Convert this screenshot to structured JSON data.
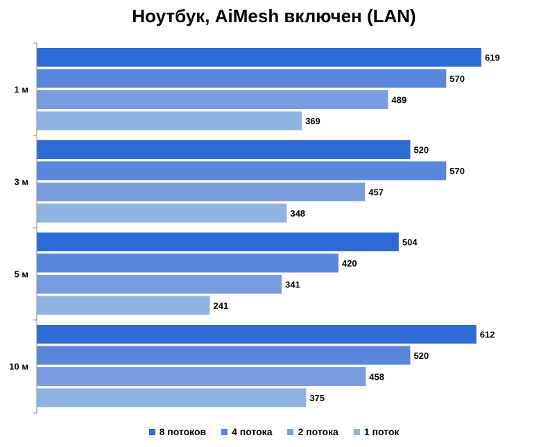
{
  "chart_data": {
    "type": "bar",
    "orientation": "horizontal",
    "title": "Ноутбук, AiMesh включен (LAN)",
    "categories": [
      "1 м",
      "3 м",
      "5 м",
      "10 м"
    ],
    "series": [
      {
        "name": "8 потоков",
        "color": "#2f6bd4",
        "values": [
          619,
          520,
          504,
          612
        ]
      },
      {
        "name": "4 потока",
        "color": "#5a87dc",
        "values": [
          570,
          570,
          420,
          520
        ]
      },
      {
        "name": "2 потока",
        "color": "#7a9de0",
        "values": [
          489,
          457,
          341,
          458
        ]
      },
      {
        "name": "1 поток",
        "color": "#8fb3e3",
        "values": [
          369,
          348,
          241,
          375
        ]
      }
    ],
    "xlim": [
      0,
      640
    ],
    "grid": false,
    "data_labels": true,
    "legend_position": "bottom"
  }
}
